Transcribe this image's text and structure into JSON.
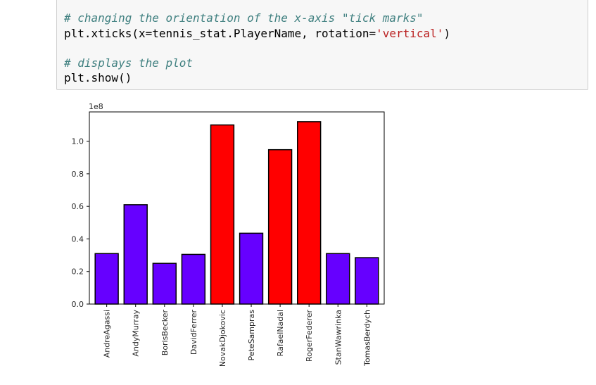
{
  "code_cell": {
    "lines": [
      {
        "type": "comment",
        "text": "# changing the orientation of the x-axis \"tick marks\""
      },
      {
        "type": "code",
        "prefix": "plt.xticks(x=tennis_stat.PlayerName, rotation=",
        "string": "'vertical'",
        "suffix": ")"
      },
      {
        "type": "blank",
        "text": ""
      },
      {
        "type": "comment",
        "text": "# displays the plot"
      },
      {
        "type": "code",
        "prefix": "plt.show()",
        "string": "",
        "suffix": ""
      }
    ]
  },
  "chart_data": {
    "type": "bar",
    "categories": [
      "AndreAgassi",
      "AndyMurray",
      "BorisBecker",
      "DavidFerrer",
      "NovakDjokovic",
      "PeteSampras",
      "RafaelNadal",
      "RogerFederer",
      "StanWawrinka",
      "TomasBerdych"
    ],
    "values": [
      31000000,
      61000000,
      25000000,
      30500000,
      110000000,
      43500000,
      94800000,
      112000000,
      31000000,
      28500000
    ],
    "bar_colors": [
      "#6600ff",
      "#6600ff",
      "#6600ff",
      "#6600ff",
      "#ff0000",
      "#6600ff",
      "#ff0000",
      "#ff0000",
      "#6600ff",
      "#6600ff"
    ],
    "bar_edge_color": "#000000",
    "scale_label": "1e8",
    "ylim": [
      0,
      118000000
    ],
    "yticks": [
      0.0,
      0.2,
      0.4,
      0.6,
      0.8,
      1.0
    ],
    "ytick_labels": [
      "0.0",
      "0.2",
      "0.4",
      "0.6",
      "0.8",
      "1.0"
    ],
    "xtick_rotation": "vertical",
    "grid": false,
    "title": "",
    "xlabel": "",
    "ylabel": ""
  }
}
